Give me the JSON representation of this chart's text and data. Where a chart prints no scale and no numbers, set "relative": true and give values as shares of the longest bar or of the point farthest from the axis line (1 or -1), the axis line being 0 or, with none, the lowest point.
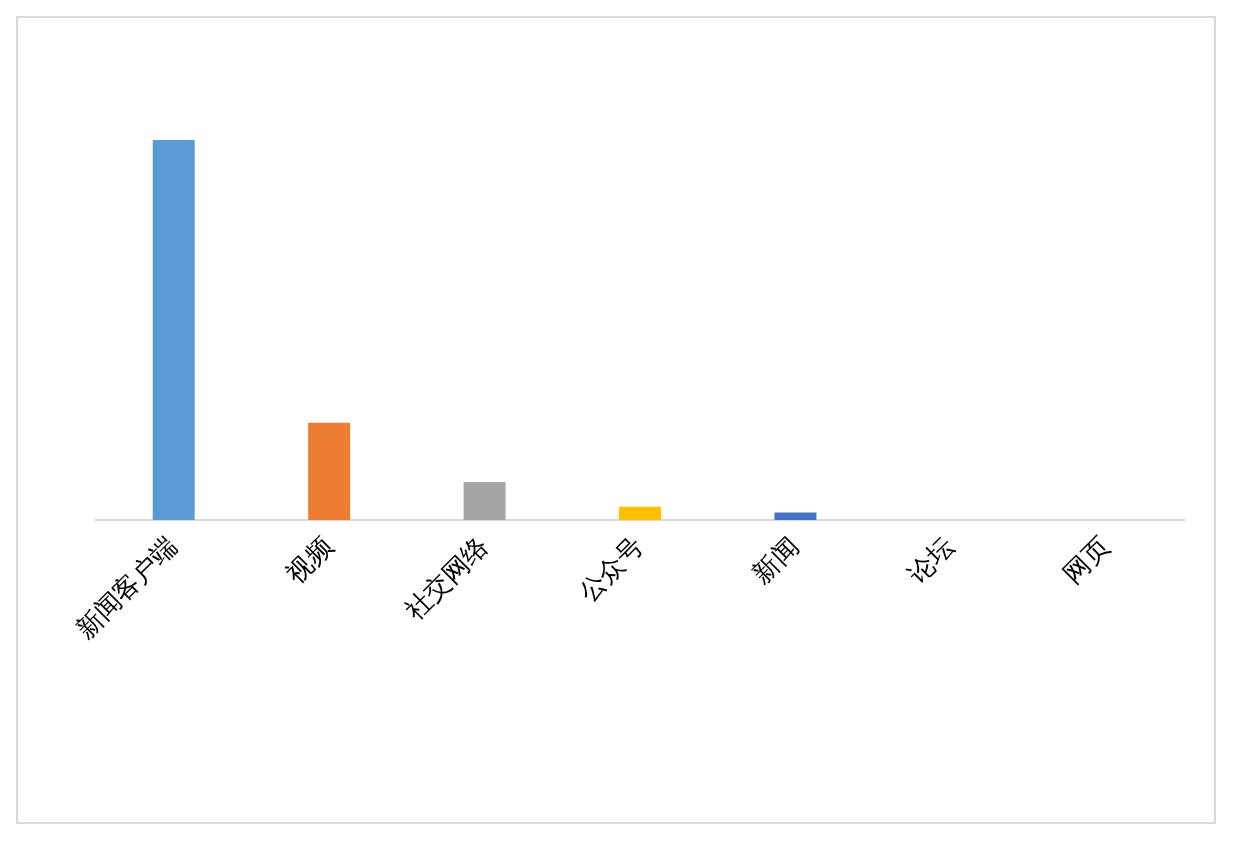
{
  "chart_data": {
    "type": "bar",
    "relative": true,
    "categories": [
      "新闻客户端",
      "视频",
      "社交网络",
      "公众号",
      "新闻",
      "论坛",
      "网页"
    ],
    "values": [
      1,
      0.256,
      0.1,
      0.035,
      0.02,
      0,
      0
    ],
    "colors": [
      "#5b9bd5",
      "#ed7d31",
      "#a5a5a5",
      "#ffc000",
      "#4472c4",
      "#70ad47",
      "#264478"
    ],
    "grid": false,
    "legend": false
  }
}
